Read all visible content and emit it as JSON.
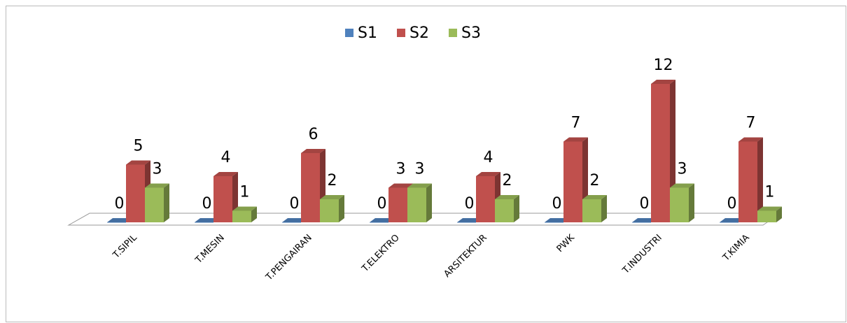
{
  "chart_data": {
    "type": "bar",
    "legend": "top",
    "categories": [
      "T.SIPIL",
      "T.MESIN",
      "T.PENGAIRAN",
      "T.ELEKTRO",
      "ARSITEKTUR",
      "PWK",
      "T.INDUSTRI",
      "T.KIMIA"
    ],
    "series": [
      {
        "name": "S1",
        "color": "#4f81bd",
        "values": [
          0,
          0,
          0,
          0,
          0,
          0,
          0,
          0
        ]
      },
      {
        "name": "S2",
        "color": "#c0504d",
        "values": [
          5,
          4,
          6,
          3,
          4,
          7,
          12,
          7
        ]
      },
      {
        "name": "S3",
        "color": "#9bbb59",
        "values": [
          3,
          1,
          2,
          3,
          2,
          2,
          3,
          1
        ]
      }
    ]
  }
}
